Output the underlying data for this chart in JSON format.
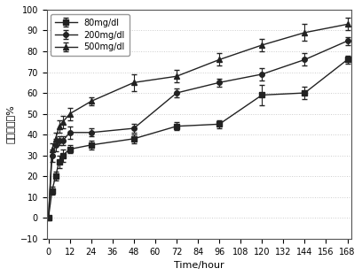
{
  "title": "",
  "xlabel": "Time/hour",
  "ylabel": "累积释放率%",
  "xlim": [
    -1,
    170
  ],
  "ylim": [
    -10,
    100
  ],
  "xticks": [
    0,
    12,
    24,
    36,
    48,
    60,
    72,
    84,
    96,
    108,
    120,
    132,
    144,
    156,
    168
  ],
  "yticks": [
    -10,
    0,
    10,
    20,
    30,
    40,
    50,
    60,
    70,
    80,
    90,
    100
  ],
  "series": [
    {
      "label": "80mg/dl",
      "color": "#222222",
      "marker": "s",
      "x": [
        0,
        2,
        4,
        6,
        8,
        12,
        24,
        48,
        72,
        96,
        120,
        144,
        168
      ],
      "y": [
        0,
        13,
        20,
        27,
        30,
        33,
        35,
        38,
        44,
        45,
        59,
        60,
        76
      ],
      "yerr": [
        0,
        2,
        2,
        3,
        3,
        2,
        2,
        2,
        2,
        2,
        5,
        3,
        2
      ]
    },
    {
      "label": "200mg/dl",
      "color": "#222222",
      "marker": "o",
      "x": [
        0,
        2,
        4,
        6,
        8,
        12,
        24,
        48,
        72,
        96,
        120,
        144,
        168
      ],
      "y": [
        0,
        30,
        35,
        37,
        37,
        41,
        41,
        43,
        60,
        65,
        69,
        76,
        85
      ],
      "yerr": [
        0,
        3,
        3,
        2,
        2,
        3,
        2,
        2,
        2,
        2,
        3,
        3,
        2
      ]
    },
    {
      "label": "500mg/dl",
      "color": "#222222",
      "marker": "^",
      "x": [
        0,
        2,
        4,
        6,
        8,
        12,
        24,
        48,
        72,
        96,
        120,
        144,
        168
      ],
      "y": [
        0,
        33,
        38,
        44,
        46,
        50,
        56,
        65,
        68,
        76,
        83,
        89,
        93
      ],
      "yerr": [
        0,
        3,
        3,
        3,
        3,
        3,
        2,
        4,
        3,
        3,
        3,
        4,
        3
      ]
    }
  ],
  "legend_loc": "upper left",
  "background_color": "#ffffff",
  "grid_color": "#cccccc",
  "grid_style": "dotted"
}
